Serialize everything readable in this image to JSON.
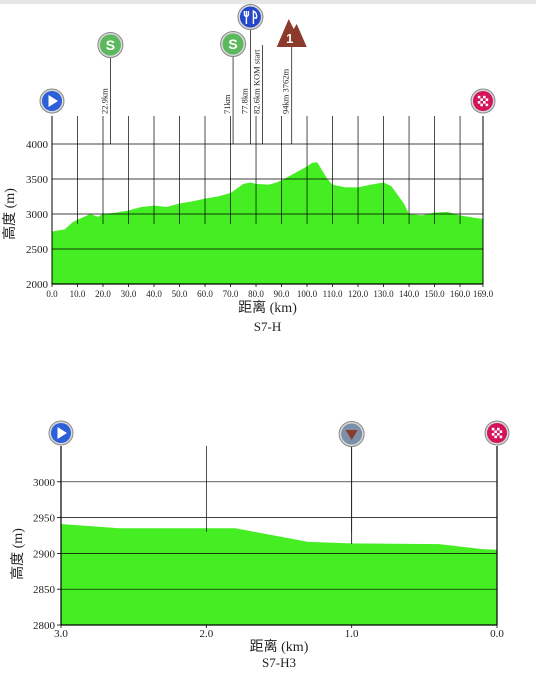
{
  "chart_data": [
    {
      "type": "area",
      "title": "S7-H",
      "xlabel": "距离 (km)",
      "ylabel": "高度 (m)",
      "xlim": [
        0,
        169
      ],
      "ylim": [
        2000,
        4000
      ],
      "x_ticks": [
        "0.0",
        "10.0",
        "20.0",
        "30.0",
        "40.0",
        "50.0",
        "60.0",
        "70.0",
        "80.0",
        "90.0",
        "100.0",
        "110.0",
        "120.0",
        "130.0",
        "140.0",
        "150.0",
        "160.0",
        "169.0"
      ],
      "y_ticks": [
        "2000",
        "2500",
        "3000",
        "3500",
        "4000"
      ],
      "grid": true,
      "fill_color": "#44ee22",
      "x": [
        0,
        5,
        8,
        10,
        12,
        15,
        18,
        20,
        25,
        30,
        35,
        40,
        45,
        50,
        55,
        60,
        65,
        70,
        72,
        75,
        78,
        80,
        85,
        88,
        90,
        92,
        95,
        97,
        100,
        102,
        104,
        106,
        108,
        110,
        115,
        120,
        125,
        130,
        133,
        135,
        138,
        140,
        145,
        150,
        155,
        160,
        165,
        169
      ],
      "values": [
        2750,
        2780,
        2880,
        2920,
        2950,
        3000,
        2960,
        3000,
        3020,
        3050,
        3100,
        3120,
        3100,
        3150,
        3180,
        3220,
        3250,
        3300,
        3350,
        3430,
        3450,
        3430,
        3420,
        3450,
        3480,
        3520,
        3580,
        3620,
        3680,
        3730,
        3740,
        3620,
        3500,
        3420,
        3380,
        3380,
        3420,
        3450,
        3400,
        3300,
        3150,
        3000,
        2980,
        3020,
        3030,
        2980,
        2950,
        2930
      ],
      "vertical_lines_km": [
        10,
        20,
        30,
        40,
        50,
        60,
        70,
        80,
        90,
        100,
        110,
        120,
        130,
        140,
        150,
        160
      ],
      "markers": [
        {
          "type": "start",
          "km": 0
        },
        {
          "type": "sprint",
          "km": 22.9,
          "label": "22.9km"
        },
        {
          "type": "sprint",
          "km": 71,
          "label": "71km"
        },
        {
          "type": "feed",
          "km": 77.8,
          "label": "77.8km"
        },
        {
          "type": "kom-start",
          "km": 82.6,
          "label": "82.6km KOM start"
        },
        {
          "type": "kom",
          "km": 94,
          "label": "94km 3762m",
          "category": "1"
        },
        {
          "type": "finish",
          "km": 169
        }
      ]
    },
    {
      "type": "area",
      "title": "S7-H3",
      "xlabel": "距离 (km)",
      "ylabel": "高度 (m)",
      "xlim": [
        3,
        0
      ],
      "ylim": [
        2800,
        3050
      ],
      "x_ticks": [
        "3.0",
        "2.0",
        "1.0",
        "0.0"
      ],
      "y_ticks": [
        "2800",
        "2850",
        "2900",
        "2950",
        "3000"
      ],
      "grid": true,
      "fill_color": "#44ee22",
      "x": [
        3.0,
        2.6,
        2.2,
        1.8,
        1.3,
        1.0,
        0.4,
        0.1,
        0.0
      ],
      "values": [
        2941,
        2935,
        2935,
        2935,
        2916,
        2914,
        2913,
        2906,
        2905
      ],
      "vertical_lines_km": [
        2.0,
        1.0
      ],
      "markers": [
        {
          "type": "start",
          "km": 3.0
        },
        {
          "type": "descent",
          "km": 1.0
        },
        {
          "type": "finish",
          "km": 0.0
        }
      ]
    }
  ]
}
